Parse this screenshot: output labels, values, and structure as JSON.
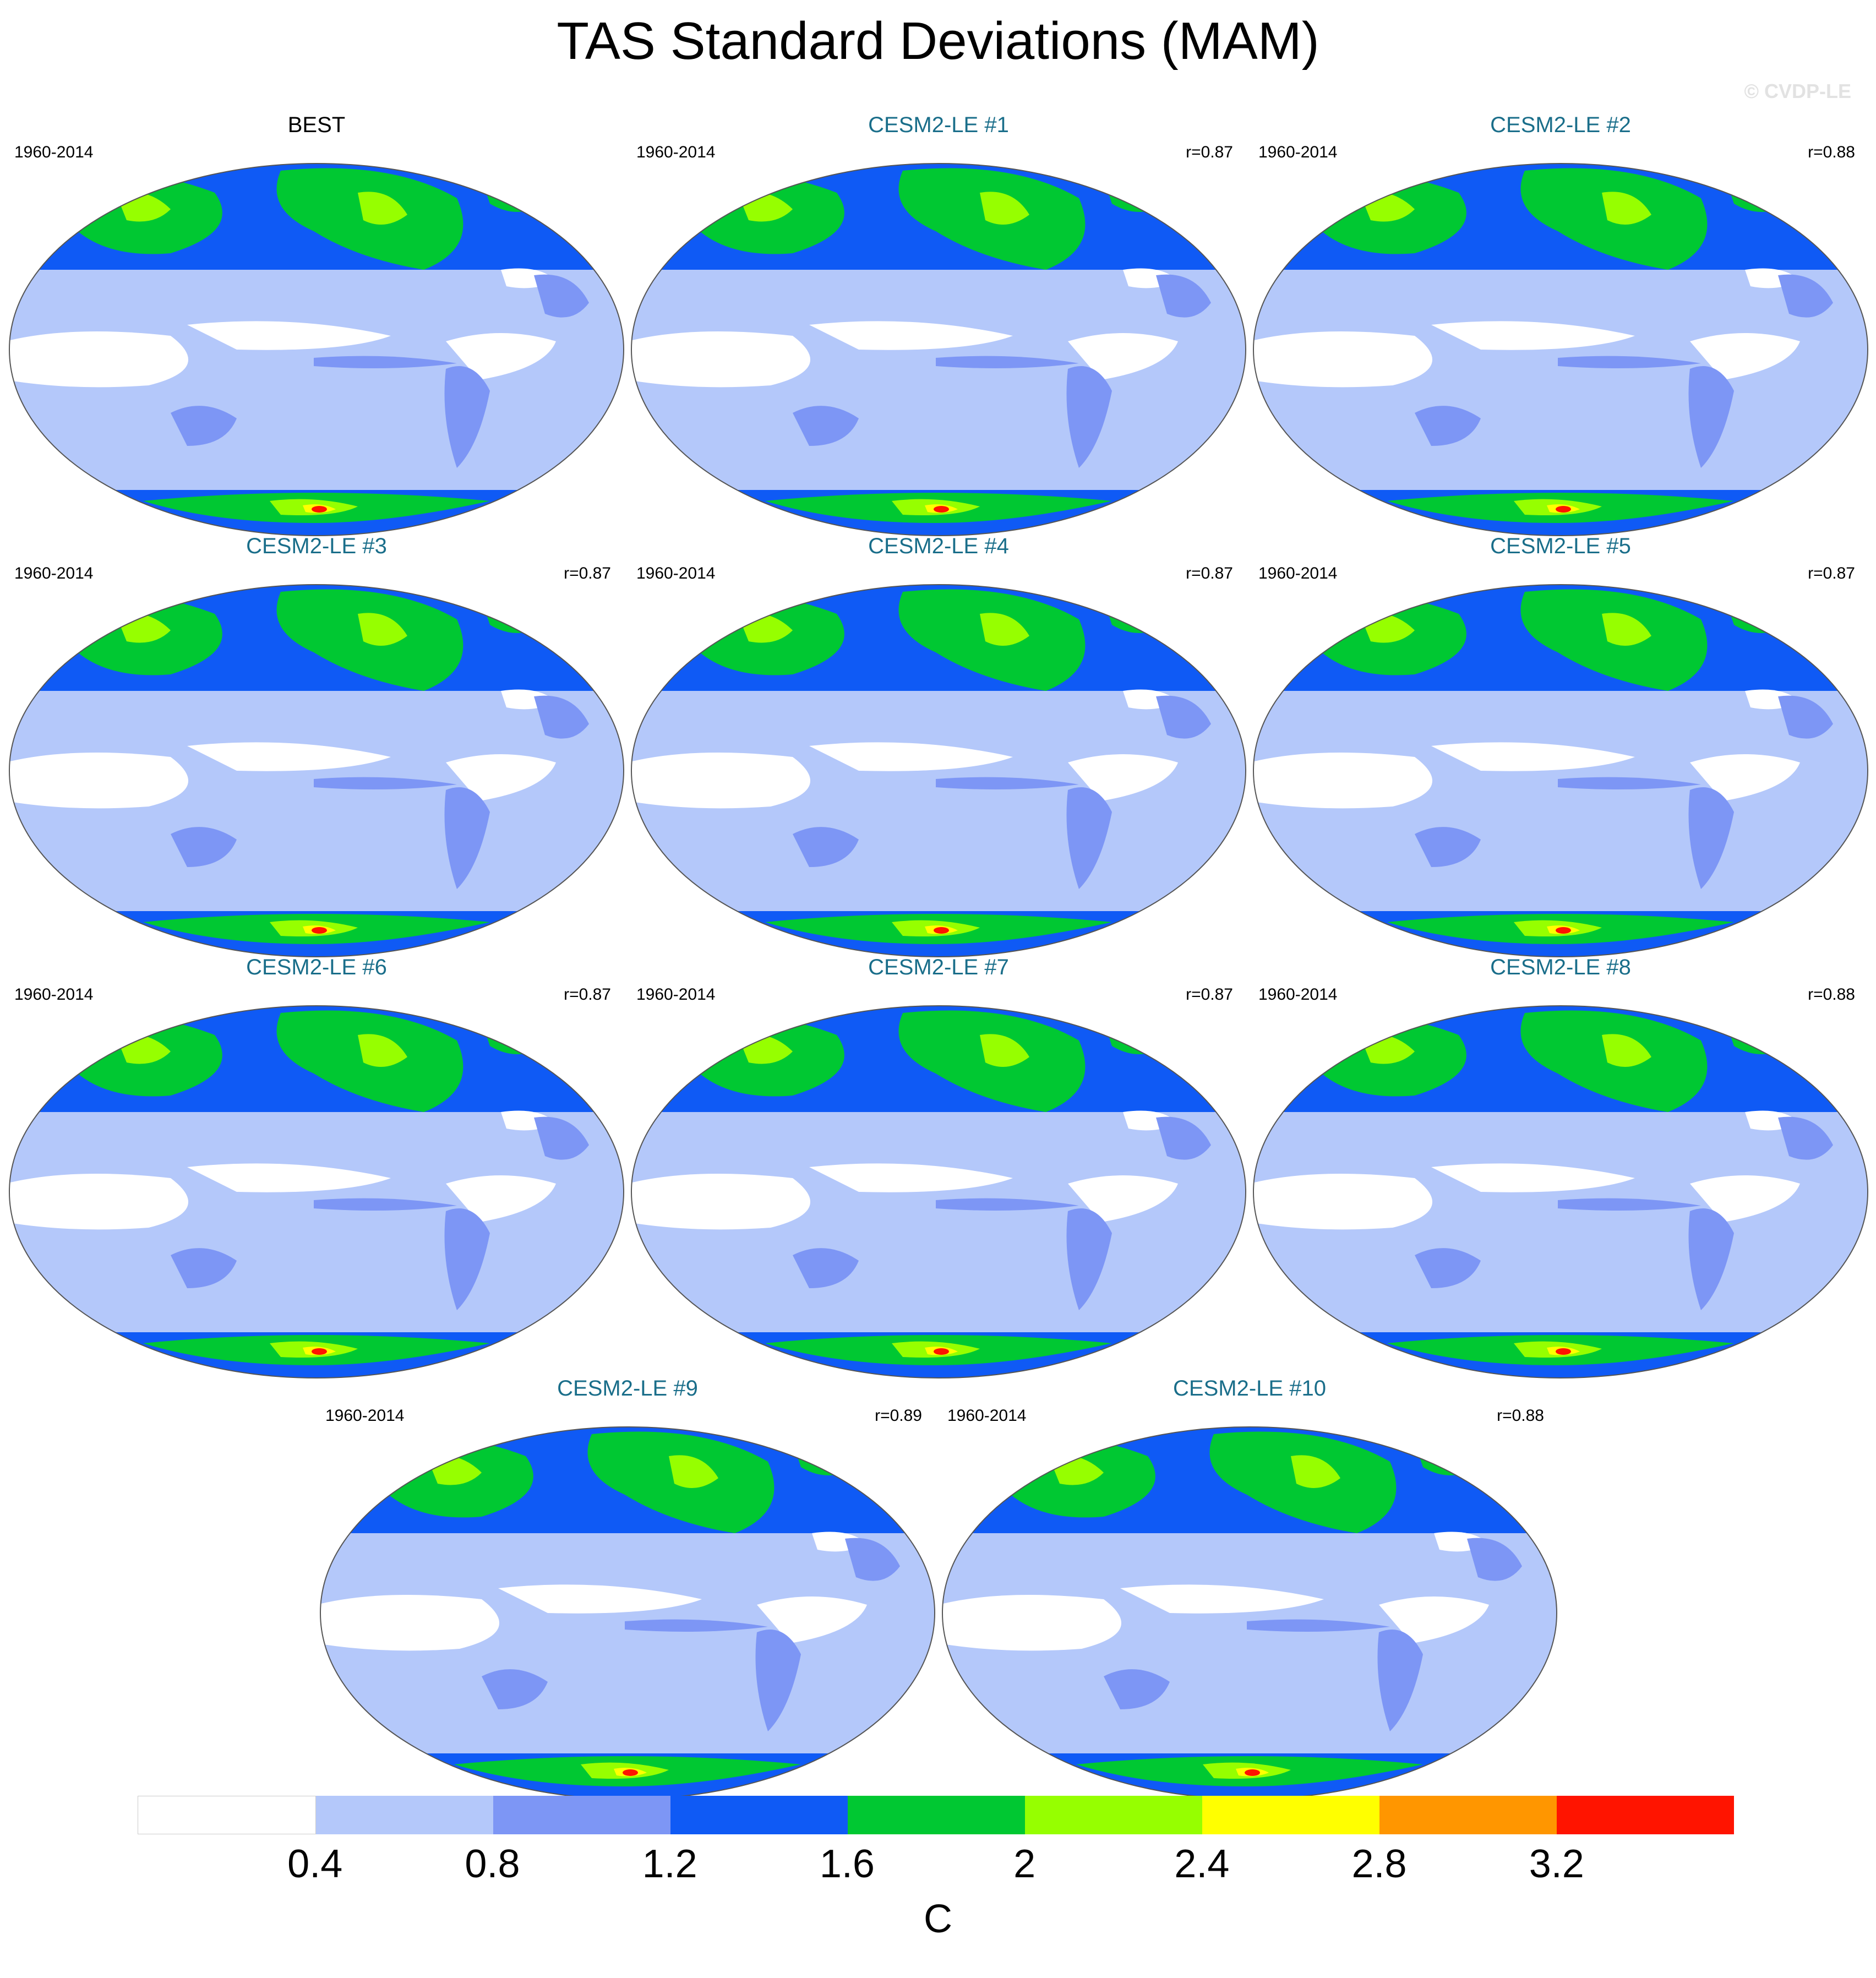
{
  "title": "TAS Standard Deviations (MAM)",
  "watermark": "© CVDP-LE",
  "panels": [
    {
      "label": "BEST",
      "period": "1960-2014",
      "corr": ""
    },
    {
      "label": "CESM2-LE #1",
      "period": "1960-2014",
      "corr": "r=0.87"
    },
    {
      "label": "CESM2-LE #2",
      "period": "1960-2014",
      "corr": "r=0.88"
    },
    {
      "label": "CESM2-LE #3",
      "period": "1960-2014",
      "corr": "r=0.87"
    },
    {
      "label": "CESM2-LE #4",
      "period": "1960-2014",
      "corr": "r=0.87"
    },
    {
      "label": "CESM2-LE #5",
      "period": "1960-2014",
      "corr": "r=0.87"
    },
    {
      "label": "CESM2-LE #6",
      "period": "1960-2014",
      "corr": "r=0.87"
    },
    {
      "label": "CESM2-LE #7",
      "period": "1960-2014",
      "corr": "r=0.87"
    },
    {
      "label": "CESM2-LE #8",
      "period": "1960-2014",
      "corr": "r=0.88"
    },
    {
      "label": "CESM2-LE #9",
      "period": "1960-2014",
      "corr": "r=0.89"
    },
    {
      "label": "CESM2-LE #10",
      "period": "1960-2014",
      "corr": "r=0.88"
    }
  ],
  "colorbar": {
    "colors": [
      "#ffffff",
      "#b4c8fa",
      "#7d96f5",
      "#0f5af5",
      "#00c832",
      "#96ff00",
      "#ffff00",
      "#ff9600",
      "#ff1400"
    ],
    "ticks": [
      "0.4",
      "0.8",
      "1.2",
      "1.6",
      "2",
      "2.4",
      "2.8",
      "3.2"
    ],
    "units": "C"
  }
}
